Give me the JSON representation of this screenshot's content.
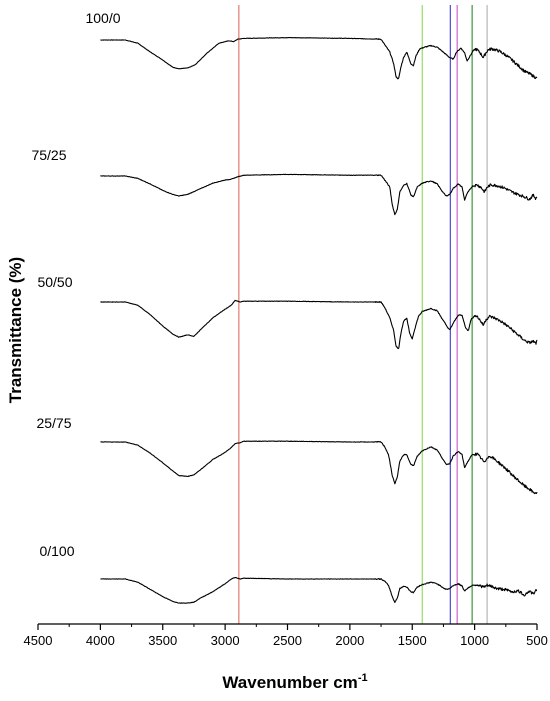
{
  "chart_data": {
    "type": "line",
    "title": "",
    "xlabel": "Wavenumber cm",
    "xlabel_superscript": "-1",
    "ylabel": "Transmittance (%)",
    "xlim": [
      4500,
      500
    ],
    "x_reversed": true,
    "x_ticks": [
      "4500",
      "4000",
      "3500",
      "3000",
      "2500",
      "2000",
      "1500",
      "1000",
      "500"
    ],
    "grid": false,
    "legend": "none",
    "series_names": [
      "100/0",
      "75/25",
      "50/50",
      "25/75",
      "0/100"
    ],
    "spectra": [
      {
        "name": "100/0",
        "points": [
          [
            4000,
            0.0
          ],
          [
            3800,
            0.0
          ],
          [
            3700,
            -0.4
          ],
          [
            3600,
            -1.5
          ],
          [
            3500,
            -2.5
          ],
          [
            3420,
            -3.4
          ],
          [
            3370,
            -3.6
          ],
          [
            3300,
            -3.5
          ],
          [
            3240,
            -3.1
          ],
          [
            3150,
            -1.7
          ],
          [
            3050,
            -0.4
          ],
          [
            2970,
            -0.1
          ],
          [
            2930,
            -0.2
          ],
          [
            2900,
            0.1
          ],
          [
            2850,
            0.2
          ],
          [
            2500,
            0.3
          ],
          [
            2000,
            0.2
          ],
          [
            1750,
            0.1
          ],
          [
            1720,
            -0.6
          ],
          [
            1680,
            -1.5
          ],
          [
            1650,
            -2.9
          ],
          [
            1630,
            -4.6
          ],
          [
            1610,
            -4.9
          ],
          [
            1590,
            -3.3
          ],
          [
            1570,
            -2.2
          ],
          [
            1545,
            -1.5
          ],
          [
            1510,
            -3.0
          ],
          [
            1490,
            -3.2
          ],
          [
            1470,
            -2.0
          ],
          [
            1440,
            -1.1
          ],
          [
            1400,
            -0.9
          ],
          [
            1350,
            -0.7
          ],
          [
            1300,
            -0.9
          ],
          [
            1260,
            -1.4
          ],
          [
            1200,
            -2.2
          ],
          [
            1170,
            -2.4
          ],
          [
            1150,
            -1.6
          ],
          [
            1110,
            -1.0
          ],
          [
            1080,
            -1.6
          ],
          [
            1060,
            -2.6
          ],
          [
            1040,
            -2.1
          ],
          [
            1010,
            -1.3
          ],
          [
            990,
            -1.1
          ],
          [
            960,
            -1.5
          ],
          [
            930,
            -2.2
          ],
          [
            910,
            -1.6
          ],
          [
            890,
            -1.2
          ],
          [
            860,
            -1.1
          ],
          [
            800,
            -1.4
          ],
          [
            750,
            -1.9
          ],
          [
            700,
            -2.5
          ],
          [
            650,
            -3.2
          ],
          [
            600,
            -3.9
          ],
          [
            550,
            -4.3
          ],
          [
            520,
            -4.6
          ],
          [
            500,
            -4.8
          ]
        ]
      },
      {
        "name": "75/25",
        "points": [
          [
            4000,
            0.0
          ],
          [
            3800,
            0.0
          ],
          [
            3700,
            -0.3
          ],
          [
            3600,
            -1.0
          ],
          [
            3500,
            -1.8
          ],
          [
            3420,
            -2.3
          ],
          [
            3370,
            -2.5
          ],
          [
            3300,
            -2.3
          ],
          [
            3200,
            -1.6
          ],
          [
            3100,
            -0.9
          ],
          [
            3000,
            -0.5
          ],
          [
            2950,
            -0.4
          ],
          [
            2900,
            -0.1
          ],
          [
            2850,
            0.1
          ],
          [
            2500,
            0.2
          ],
          [
            2000,
            0.1
          ],
          [
            1750,
            0.1
          ],
          [
            1720,
            -0.5
          ],
          [
            1680,
            -1.4
          ],
          [
            1660,
            -3.6
          ],
          [
            1640,
            -4.8
          ],
          [
            1620,
            -4.2
          ],
          [
            1600,
            -2.0
          ],
          [
            1570,
            -1.2
          ],
          [
            1545,
            -0.9
          ],
          [
            1510,
            -2.4
          ],
          [
            1490,
            -2.6
          ],
          [
            1460,
            -1.4
          ],
          [
            1420,
            -0.9
          ],
          [
            1350,
            -0.6
          ],
          [
            1300,
            -1.0
          ],
          [
            1260,
            -1.9
          ],
          [
            1230,
            -2.5
          ],
          [
            1200,
            -2.3
          ],
          [
            1170,
            -1.5
          ],
          [
            1130,
            -1.0
          ],
          [
            1100,
            -1.4
          ],
          [
            1080,
            -3.0
          ],
          [
            1060,
            -2.2
          ],
          [
            1020,
            -1.3
          ],
          [
            980,
            -1.1
          ],
          [
            950,
            -1.4
          ],
          [
            920,
            -2.0
          ],
          [
            900,
            -1.4
          ],
          [
            870,
            -1.1
          ],
          [
            820,
            -1.2
          ],
          [
            760,
            -1.5
          ],
          [
            700,
            -2.0
          ],
          [
            650,
            -2.3
          ],
          [
            600,
            -2.6
          ],
          [
            560,
            -2.9
          ],
          [
            530,
            -2.4
          ],
          [
            510,
            -2.8
          ],
          [
            500,
            -2.6
          ]
        ]
      },
      {
        "name": "50/50",
        "points": [
          [
            4000,
            0.0
          ],
          [
            3800,
            0.0
          ],
          [
            3700,
            -0.4
          ],
          [
            3600,
            -1.6
          ],
          [
            3500,
            -3.0
          ],
          [
            3420,
            -4.0
          ],
          [
            3370,
            -4.4
          ],
          [
            3300,
            -4.1
          ],
          [
            3250,
            -4.3
          ],
          [
            3200,
            -3.5
          ],
          [
            3100,
            -2.0
          ],
          [
            3000,
            -0.9
          ],
          [
            2950,
            -0.4
          ],
          [
            2920,
            0.2
          ],
          [
            2880,
            0.0
          ],
          [
            2850,
            0.1
          ],
          [
            2500,
            0.1
          ],
          [
            2000,
            0.0
          ],
          [
            1750,
            0.0
          ],
          [
            1720,
            -0.7
          ],
          [
            1680,
            -2.0
          ],
          [
            1650,
            -3.5
          ],
          [
            1630,
            -5.5
          ],
          [
            1610,
            -5.9
          ],
          [
            1590,
            -3.8
          ],
          [
            1570,
            -2.4
          ],
          [
            1545,
            -2.0
          ],
          [
            1520,
            -4.0
          ],
          [
            1500,
            -4.6
          ],
          [
            1480,
            -3.4
          ],
          [
            1450,
            -1.8
          ],
          [
            1420,
            -1.2
          ],
          [
            1350,
            -0.8
          ],
          [
            1300,
            -1.1
          ],
          [
            1260,
            -2.1
          ],
          [
            1220,
            -3.1
          ],
          [
            1200,
            -3.5
          ],
          [
            1170,
            -2.6
          ],
          [
            1130,
            -1.6
          ],
          [
            1100,
            -1.7
          ],
          [
            1070,
            -3.3
          ],
          [
            1050,
            -3.6
          ],
          [
            1030,
            -2.2
          ],
          [
            990,
            -1.6
          ],
          [
            960,
            -2.2
          ],
          [
            930,
            -2.9
          ],
          [
            910,
            -2.2
          ],
          [
            880,
            -1.8
          ],
          [
            840,
            -2.0
          ],
          [
            780,
            -2.5
          ],
          [
            720,
            -3.2
          ],
          [
            660,
            -4.0
          ],
          [
            600,
            -4.8
          ],
          [
            560,
            -5.1
          ],
          [
            530,
            -4.9
          ],
          [
            510,
            -5.2
          ],
          [
            500,
            -4.9
          ]
        ]
      },
      {
        "name": "25/75",
        "points": [
          [
            4000,
            0.0
          ],
          [
            3800,
            0.0
          ],
          [
            3700,
            -0.4
          ],
          [
            3600,
            -1.4
          ],
          [
            3500,
            -2.6
          ],
          [
            3420,
            -3.6
          ],
          [
            3370,
            -4.2
          ],
          [
            3300,
            -4.3
          ],
          [
            3250,
            -4.1
          ],
          [
            3200,
            -3.5
          ],
          [
            3100,
            -2.2
          ],
          [
            3000,
            -1.3
          ],
          [
            2950,
            -0.7
          ],
          [
            2920,
            -0.2
          ],
          [
            2880,
            -0.1
          ],
          [
            2850,
            0.1
          ],
          [
            2500,
            0.1
          ],
          [
            2000,
            0.0
          ],
          [
            1750,
            0.0
          ],
          [
            1720,
            -0.6
          ],
          [
            1690,
            -1.6
          ],
          [
            1660,
            -4.2
          ],
          [
            1640,
            -5.2
          ],
          [
            1620,
            -4.4
          ],
          [
            1600,
            -2.4
          ],
          [
            1570,
            -1.6
          ],
          [
            1545,
            -1.6
          ],
          [
            1510,
            -2.8
          ],
          [
            1490,
            -3.0
          ],
          [
            1460,
            -1.8
          ],
          [
            1420,
            -1.1
          ],
          [
            1350,
            -0.6
          ],
          [
            1300,
            -1.0
          ],
          [
            1260,
            -2.0
          ],
          [
            1230,
            -2.8
          ],
          [
            1200,
            -2.7
          ],
          [
            1170,
            -1.7
          ],
          [
            1130,
            -1.2
          ],
          [
            1100,
            -1.6
          ],
          [
            1080,
            -3.2
          ],
          [
            1060,
            -2.6
          ],
          [
            1020,
            -1.6
          ],
          [
            980,
            -1.5
          ],
          [
            950,
            -2.0
          ],
          [
            920,
            -2.6
          ],
          [
            900,
            -1.9
          ],
          [
            870,
            -1.8
          ],
          [
            820,
            -2.4
          ],
          [
            760,
            -3.2
          ],
          [
            700,
            -4.1
          ],
          [
            650,
            -4.8
          ],
          [
            600,
            -5.5
          ],
          [
            560,
            -5.9
          ],
          [
            530,
            -6.3
          ],
          [
            500,
            -6.4
          ]
        ]
      },
      {
        "name": "0/100",
        "points": [
          [
            4000,
            0.0
          ],
          [
            3800,
            0.0
          ],
          [
            3700,
            -0.4
          ],
          [
            3600,
            -1.3
          ],
          [
            3500,
            -2.2
          ],
          [
            3420,
            -2.8
          ],
          [
            3370,
            -3.0
          ],
          [
            3300,
            -3.0
          ],
          [
            3250,
            -2.9
          ],
          [
            3200,
            -2.4
          ],
          [
            3100,
            -1.6
          ],
          [
            3000,
            -0.6
          ],
          [
            2950,
            0.0
          ],
          [
            2920,
            0.2
          ],
          [
            2880,
            0.0
          ],
          [
            2850,
            0.1
          ],
          [
            2500,
            0.0
          ],
          [
            2000,
            0.0
          ],
          [
            1750,
            0.0
          ],
          [
            1720,
            -0.3
          ],
          [
            1690,
            -0.8
          ],
          [
            1660,
            -2.2
          ],
          [
            1640,
            -2.9
          ],
          [
            1620,
            -2.4
          ],
          [
            1600,
            -1.2
          ],
          [
            1570,
            -0.9
          ],
          [
            1545,
            -1.0
          ],
          [
            1510,
            -1.6
          ],
          [
            1490,
            -1.7
          ],
          [
            1460,
            -1.0
          ],
          [
            1420,
            -0.7
          ],
          [
            1350,
            -0.4
          ],
          [
            1300,
            -0.6
          ],
          [
            1260,
            -1.0
          ],
          [
            1230,
            -1.3
          ],
          [
            1200,
            -1.2
          ],
          [
            1170,
            -0.8
          ],
          [
            1130,
            -0.6
          ],
          [
            1100,
            -0.9
          ],
          [
            1080,
            -1.5
          ],
          [
            1060,
            -1.2
          ],
          [
            1020,
            -0.8
          ],
          [
            980,
            -0.7
          ],
          [
            950,
            -0.9
          ],
          [
            920,
            -1.0
          ],
          [
            900,
            -0.8
          ],
          [
            870,
            -0.9
          ],
          [
            820,
            -1.2
          ],
          [
            760,
            -1.3
          ],
          [
            700,
            -1.6
          ],
          [
            650,
            -1.5
          ],
          [
            600,
            -2.0
          ],
          [
            560,
            -1.5
          ],
          [
            530,
            -1.9
          ],
          [
            510,
            -1.4
          ],
          [
            500,
            -1.6
          ]
        ]
      }
    ],
    "reference_lines": [
      {
        "x": 2890,
        "color": "#e07060"
      },
      {
        "x": 1420,
        "color": "#88dd55"
      },
      {
        "x": 1195,
        "color": "#3a3ad0"
      },
      {
        "x": 1140,
        "color": "#cc55cc"
      },
      {
        "x": 1020,
        "color": "#2a8a2a"
      },
      {
        "x": 900,
        "color": "#b0b0b0"
      }
    ]
  }
}
